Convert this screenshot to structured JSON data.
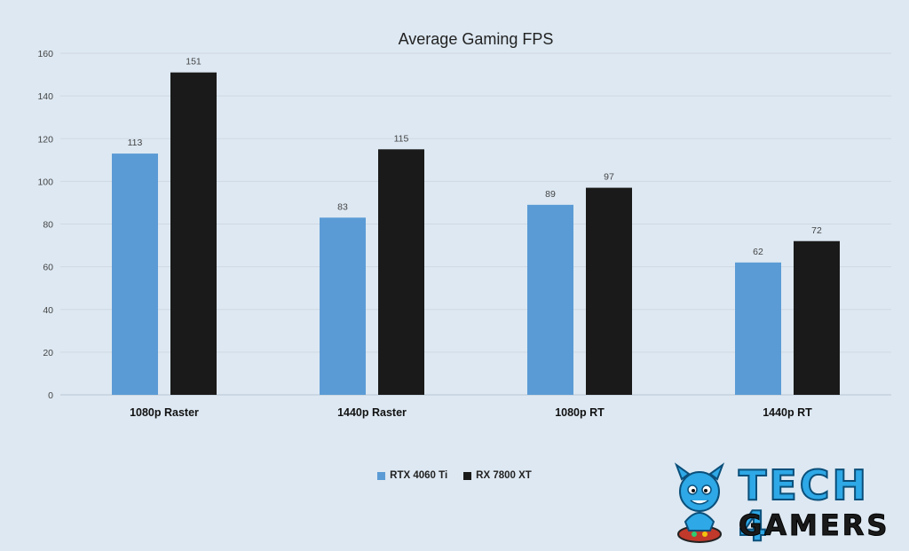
{
  "chart_data": {
    "type": "bar",
    "title": "Average Gaming FPS",
    "categories": [
      "1080p Raster",
      "1440p Raster",
      "1080p RT",
      "1440p RT"
    ],
    "series": [
      {
        "name": "RTX 4060 Ti",
        "color": "#5b9bd5",
        "values": [
          113,
          83,
          89,
          62
        ]
      },
      {
        "name": "RX 7800 XT",
        "color": "#1a1a1a",
        "values": [
          151,
          115,
          97,
          72
        ]
      }
    ],
    "yticks": [
      0,
      20,
      40,
      60,
      80,
      100,
      120,
      140,
      160
    ],
    "ylim": [
      0,
      160
    ],
    "grid": true,
    "legend_position": "bottom"
  },
  "logo": {
    "top": "TECH 4",
    "bottom": "GAMERS"
  }
}
